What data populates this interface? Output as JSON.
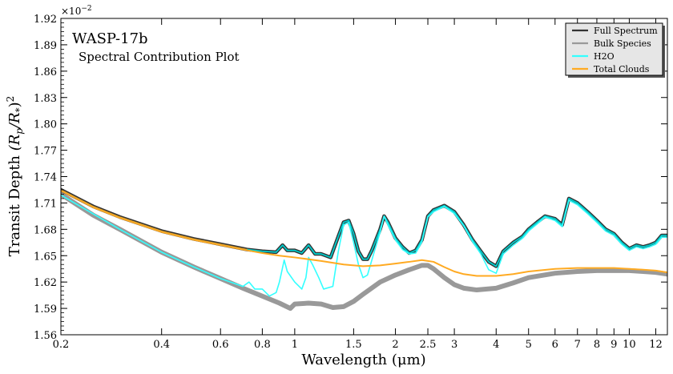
{
  "chart_data": {
    "type": "line",
    "title": "WASP-17b",
    "subtitle": "Spectral Contribution Plot",
    "xlabel": "Wavelength (μm)",
    "ylabel": "Transit Depth (R_p/R_*)^2",
    "y_offset_label": "×10^-2",
    "x_scale": "log",
    "xlim": [
      0.2,
      13.0
    ],
    "ylim": [
      1.56,
      1.92
    ],
    "grid": false,
    "legend_position": "top-right",
    "x_ticks": [
      {
        "value": 0.2,
        "label": "0.2"
      },
      {
        "value": 0.4,
        "label": "0.4"
      },
      {
        "value": 0.6,
        "label": "0.6"
      },
      {
        "value": 0.8,
        "label": "0.8"
      },
      {
        "value": 1,
        "label": "1"
      },
      {
        "value": 1.5,
        "label": "1.5"
      },
      {
        "value": 2,
        "label": "2"
      },
      {
        "value": 2.5,
        "label": "2.5"
      },
      {
        "value": 3,
        "label": "3"
      },
      {
        "value": 4,
        "label": "4"
      },
      {
        "value": 5,
        "label": "5"
      },
      {
        "value": 6,
        "label": "6"
      },
      {
        "value": 7,
        "label": "7"
      },
      {
        "value": 8,
        "label": "8"
      },
      {
        "value": 9,
        "label": "9"
      },
      {
        "value": 10,
        "label": "10"
      },
      {
        "value": 12,
        "label": "12"
      }
    ],
    "y_ticks": [
      {
        "value": 1.56,
        "label": "1.56"
      },
      {
        "value": 1.59,
        "label": "1.59"
      },
      {
        "value": 1.62,
        "label": "1.62"
      },
      {
        "value": 1.65,
        "label": "1.65"
      },
      {
        "value": 1.68,
        "label": "1.68"
      },
      {
        "value": 1.71,
        "label": "1.71"
      },
      {
        "value": 1.74,
        "label": "1.74"
      },
      {
        "value": 1.77,
        "label": "1.77"
      },
      {
        "value": 1.8,
        "label": "1.80"
      },
      {
        "value": 1.83,
        "label": "1.83"
      },
      {
        "value": 1.86,
        "label": "1.86"
      },
      {
        "value": 1.89,
        "label": "1.89"
      },
      {
        "value": 1.92,
        "label": "1.92"
      }
    ],
    "series": [
      {
        "name": "Full Spectrum",
        "color": "#333333",
        "x": [
          0.2,
          0.25,
          0.3,
          0.4,
          0.5,
          0.6,
          0.72,
          0.8,
          0.88,
          0.92,
          0.95,
          1.0,
          1.05,
          1.1,
          1.15,
          1.2,
          1.28,
          1.35,
          1.4,
          1.45,
          1.5,
          1.55,
          1.6,
          1.65,
          1.7,
          1.8,
          1.85,
          1.9,
          2.0,
          2.1,
          2.2,
          2.3,
          2.4,
          2.5,
          2.6,
          2.8,
          3.0,
          3.2,
          3.4,
          3.6,
          3.8,
          4.0,
          4.2,
          4.5,
          4.8,
          5.0,
          5.3,
          5.6,
          6.0,
          6.3,
          6.6,
          7.0,
          7.5,
          8.0,
          8.5,
          9.0,
          9.5,
          10.0,
          10.5,
          11.0,
          11.5,
          12.0,
          12.5,
          13.0
        ],
        "y": [
          1.725,
          1.706,
          1.694,
          1.678,
          1.669,
          1.663,
          1.657,
          1.655,
          1.654,
          1.662,
          1.656,
          1.656,
          1.653,
          1.662,
          1.652,
          1.652,
          1.648,
          1.672,
          1.688,
          1.69,
          1.675,
          1.655,
          1.646,
          1.646,
          1.656,
          1.68,
          1.695,
          1.688,
          1.67,
          1.66,
          1.653,
          1.656,
          1.668,
          1.695,
          1.702,
          1.707,
          1.7,
          1.685,
          1.668,
          1.655,
          1.643,
          1.638,
          1.655,
          1.665,
          1.672,
          1.68,
          1.688,
          1.695,
          1.692,
          1.685,
          1.715,
          1.71,
          1.7,
          1.69,
          1.68,
          1.675,
          1.665,
          1.658,
          1.662,
          1.66,
          1.662,
          1.665,
          1.673,
          1.673
        ]
      },
      {
        "name": "Bulk Species",
        "color": "#999999",
        "x": [
          0.2,
          0.25,
          0.3,
          0.4,
          0.5,
          0.6,
          0.7,
          0.8,
          0.9,
          0.97,
          1.0,
          1.1,
          1.2,
          1.3,
          1.4,
          1.5,
          1.6,
          1.8,
          2.0,
          2.2,
          2.4,
          2.5,
          2.6,
          2.8,
          3.0,
          3.2,
          3.5,
          4.0,
          4.5,
          5.0,
          6.0,
          7.0,
          8.0,
          9.0,
          10.0,
          11.0,
          12.0,
          13.0
        ],
        "y": [
          1.72,
          1.696,
          1.68,
          1.654,
          1.637,
          1.624,
          1.613,
          1.604,
          1.596,
          1.59,
          1.595,
          1.596,
          1.595,
          1.591,
          1.592,
          1.598,
          1.606,
          1.62,
          1.628,
          1.634,
          1.639,
          1.639,
          1.635,
          1.625,
          1.617,
          1.613,
          1.611,
          1.613,
          1.619,
          1.625,
          1.63,
          1.632,
          1.633,
          1.633,
          1.633,
          1.632,
          1.631,
          1.629
        ]
      },
      {
        "name": "H2O",
        "color": "#33ffff",
        "x": [
          0.2,
          0.3,
          0.4,
          0.5,
          0.6,
          0.7,
          0.73,
          0.76,
          0.8,
          0.84,
          0.88,
          0.9,
          0.93,
          0.95,
          1.0,
          1.05,
          1.08,
          1.1,
          1.13,
          1.18,
          1.22,
          1.3,
          1.35,
          1.4,
          1.45,
          1.5,
          1.55,
          1.6,
          1.65,
          1.7,
          1.8,
          1.85,
          1.9,
          2.0,
          2.1,
          2.2,
          2.3,
          2.4,
          2.5,
          2.6,
          2.8,
          3.0,
          3.2,
          3.4,
          3.6,
          3.8,
          4.0,
          4.2,
          4.5,
          4.8,
          5.0,
          5.3,
          5.6,
          6.0,
          6.3,
          6.6,
          7.0,
          7.5,
          8.0,
          8.5,
          9.0,
          9.5,
          10.0,
          10.5,
          11.0,
          11.5,
          12.0,
          12.5,
          13.0
        ],
        "y": [
          1.719,
          1.68,
          1.654,
          1.637,
          1.624,
          1.615,
          1.62,
          1.612,
          1.612,
          1.604,
          1.608,
          1.62,
          1.645,
          1.632,
          1.62,
          1.612,
          1.625,
          1.648,
          1.64,
          1.625,
          1.612,
          1.615,
          1.655,
          1.685,
          1.688,
          1.665,
          1.64,
          1.625,
          1.628,
          1.645,
          1.677,
          1.695,
          1.685,
          1.668,
          1.657,
          1.652,
          1.653,
          1.666,
          1.694,
          1.7,
          1.706,
          1.698,
          1.684,
          1.666,
          1.652,
          1.634,
          1.63,
          1.652,
          1.662,
          1.67,
          1.678,
          1.686,
          1.694,
          1.69,
          1.683,
          1.713,
          1.708,
          1.698,
          1.688,
          1.678,
          1.673,
          1.663,
          1.656,
          1.66,
          1.658,
          1.66,
          1.663,
          1.671,
          1.671
        ]
      },
      {
        "name": "Total Clouds",
        "color": "#ffaa22",
        "x": [
          0.2,
          0.25,
          0.3,
          0.4,
          0.5,
          0.6,
          0.7,
          0.8,
          0.9,
          1.0,
          1.2,
          1.4,
          1.6,
          1.8,
          2.0,
          2.2,
          2.4,
          2.6,
          2.8,
          3.0,
          3.2,
          3.5,
          4.0,
          4.5,
          5.0,
          6.0,
          7.0,
          8.0,
          9.0,
          10.0,
          11.0,
          12.0,
          13.0
        ],
        "y": [
          1.724,
          1.705,
          1.693,
          1.677,
          1.668,
          1.662,
          1.657,
          1.653,
          1.65,
          1.648,
          1.644,
          1.64,
          1.638,
          1.639,
          1.641,
          1.643,
          1.645,
          1.643,
          1.637,
          1.632,
          1.629,
          1.627,
          1.627,
          1.629,
          1.632,
          1.635,
          1.636,
          1.636,
          1.636,
          1.635,
          1.634,
          1.633,
          1.631
        ]
      }
    ]
  }
}
